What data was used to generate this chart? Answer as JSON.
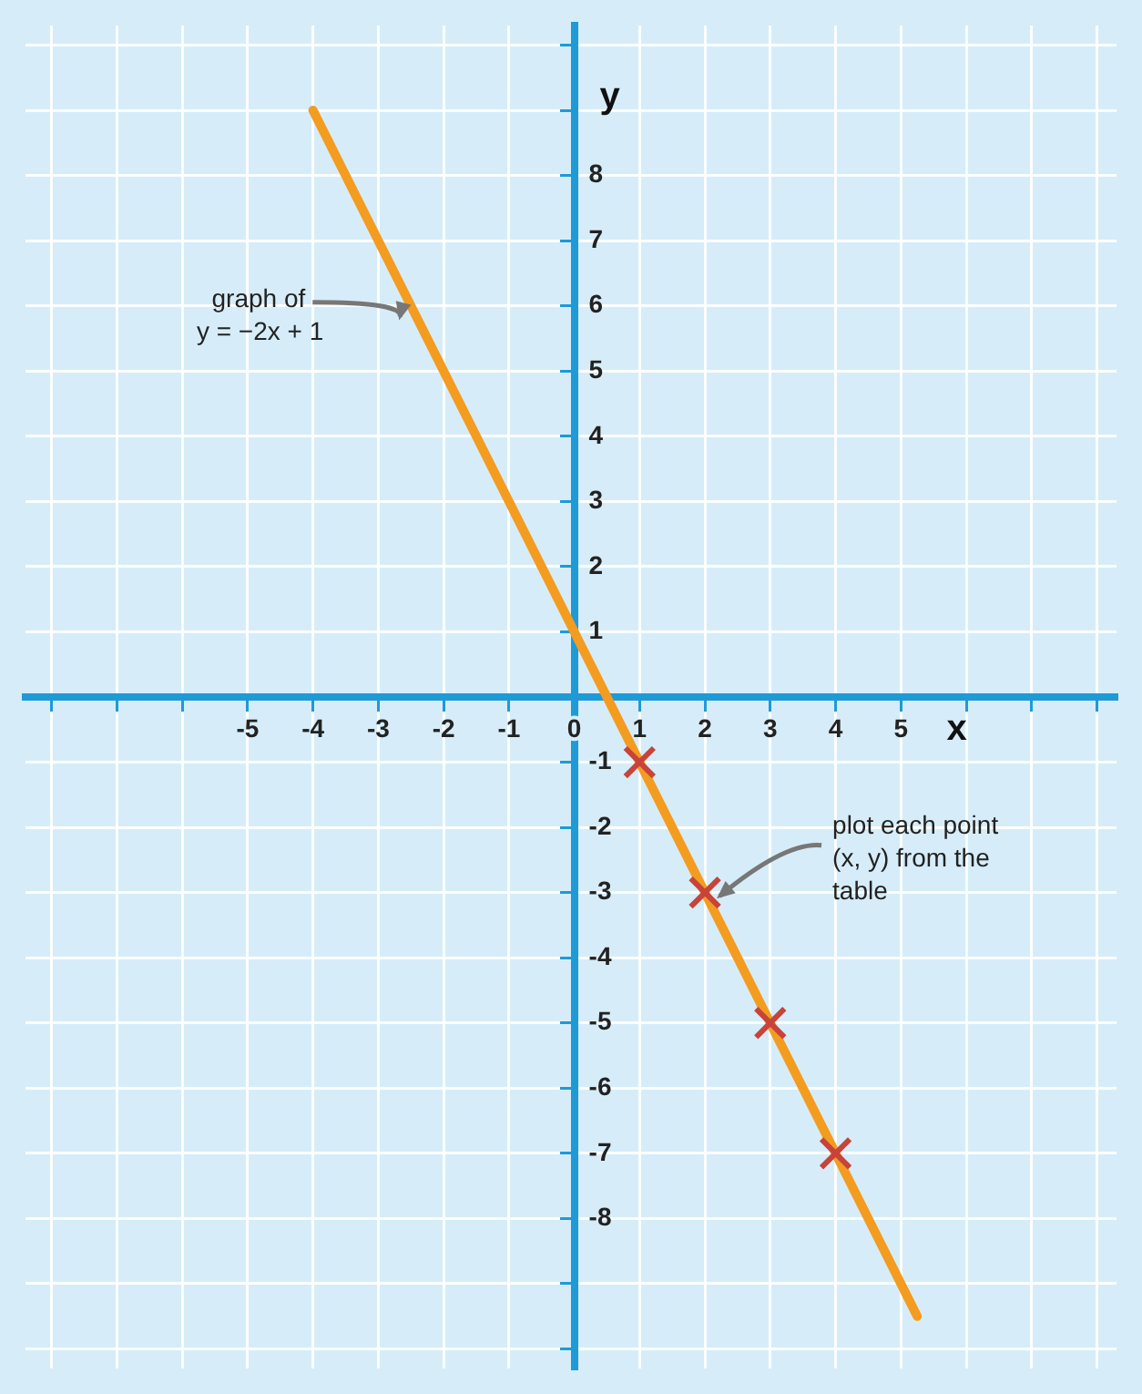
{
  "chart_data": {
    "type": "line",
    "xlabel": "x",
    "ylabel": "y",
    "xlim": [
      -8.4,
      8.3
    ],
    "ylim": [
      -10.3,
      10.3
    ],
    "xticks": [
      {
        "value": -8,
        "label": null
      },
      {
        "value": -7,
        "label": null
      },
      {
        "value": -6,
        "label": null
      },
      -5,
      -4,
      -3,
      -2,
      -1,
      0,
      1,
      2,
      3,
      4,
      5,
      {
        "value": 6,
        "label": null
      },
      {
        "value": 7,
        "label": null
      },
      {
        "value": 8,
        "label": null
      }
    ],
    "yticks": [
      {
        "value": -10,
        "label": null
      },
      {
        "value": -9,
        "label": null
      },
      -8,
      -7,
      -6,
      -5,
      -4,
      -3,
      -2,
      -1,
      {
        "value": 0,
        "label": null
      },
      1,
      2,
      3,
      4,
      5,
      6,
      7,
      8,
      {
        "value": 9,
        "label": null
      },
      {
        "value": 10,
        "label": null
      }
    ],
    "grid": true,
    "legend": false,
    "series": [
      {
        "type": "line",
        "color": "#f39c1f",
        "x": [
          -4,
          5.25
        ],
        "values": [
          9,
          -9.5
        ],
        "marker": "none",
        "line_style": "solid"
      },
      {
        "type": "scatter",
        "color": "#c8433a",
        "x": [
          1,
          2,
          3,
          4
        ],
        "values": [
          -1,
          -3,
          -5,
          -7
        ],
        "marker": "cross"
      }
    ],
    "annotations": [
      {
        "text": "graph of\ny = −2x + 1",
        "x": -2.5,
        "y": 6
      },
      {
        "text": "plot each point\n(x, y) from the\ntable",
        "x": 2,
        "y": -3
      }
    ]
  }
}
